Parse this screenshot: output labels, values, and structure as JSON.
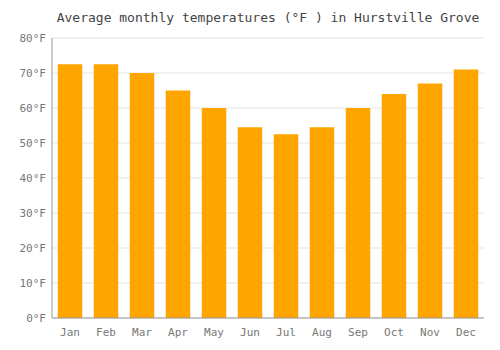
{
  "chart_data": {
    "type": "bar",
    "title": "Average monthly temperatures (°F ) in Hurstville Grove",
    "categories": [
      "Jan",
      "Feb",
      "Mar",
      "Apr",
      "May",
      "Jun",
      "Jul",
      "Aug",
      "Sep",
      "Oct",
      "Nov",
      "Dec"
    ],
    "values": [
      72.5,
      72.5,
      70.0,
      65.0,
      60.0,
      54.5,
      52.5,
      54.5,
      60.0,
      64.0,
      67.0,
      71.0
    ],
    "color": "#FFA500",
    "ylim": [
      0,
      80
    ],
    "yticks": [
      {
        "value": 0,
        "label": "0°F"
      },
      {
        "value": 10,
        "label": "10°F"
      },
      {
        "value": 20,
        "label": "20°F"
      },
      {
        "value": 30,
        "label": "30°F"
      },
      {
        "value": 40,
        "label": "40°F"
      },
      {
        "value": 50,
        "label": "50°F"
      },
      {
        "value": 60,
        "label": "60°F"
      },
      {
        "value": 70,
        "label": "70°F"
      },
      {
        "value": 80,
        "label": "80°F"
      }
    ],
    "grid": true
  }
}
